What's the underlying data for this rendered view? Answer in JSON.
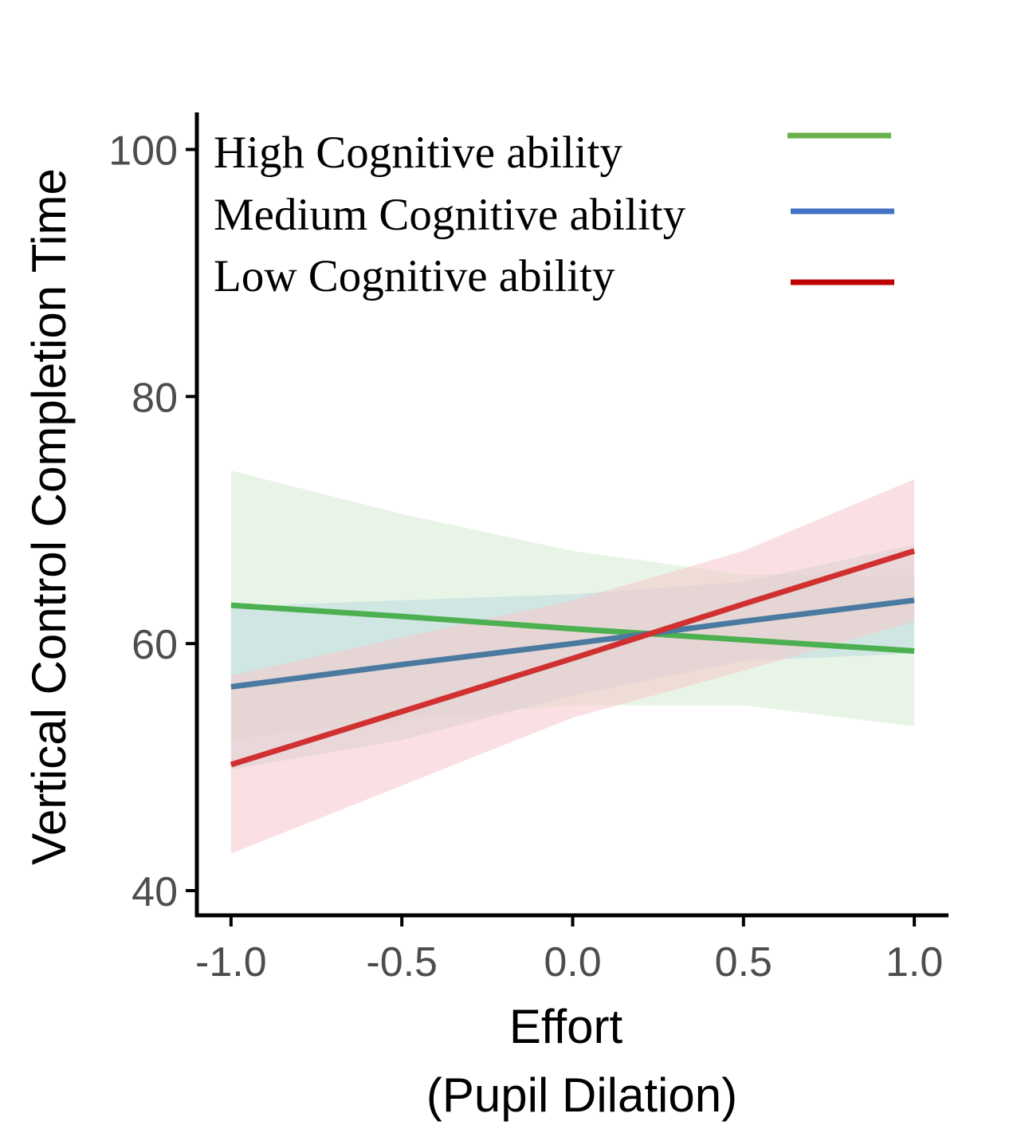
{
  "chart_data": {
    "type": "line",
    "title": "",
    "xlabel_lines": [
      "Effort",
      "(Pupil Dilation)"
    ],
    "ylabel": "Vertical Control Completion Time",
    "xlim": [
      -1.1,
      1.1
    ],
    "ylim": [
      38.0,
      103.0
    ],
    "x_ticks": [
      -1.0,
      -0.5,
      0.0,
      0.5,
      1.0
    ],
    "x_tick_labels": [
      "-1.0",
      "-0.5",
      "0.0",
      "0.5",
      "1.0"
    ],
    "y_ticks": [
      40,
      60,
      80,
      100
    ],
    "y_tick_labels": [
      "40",
      "60",
      "80",
      "100"
    ],
    "grid": false,
    "legend_position": "top",
    "series": [
      {
        "name": "High Cognitive ability",
        "color": "#6ab04c",
        "line_color": "#4caf50",
        "band_color": "#d6ecd2",
        "x": [
          -1.0,
          -0.5,
          0.0,
          0.5,
          1.0
        ],
        "y": [
          63.1,
          62.2,
          61.2,
          60.3,
          59.4
        ],
        "lower": [
          52.3,
          53.9,
          55.0,
          55.0,
          53.3
        ],
        "upper": [
          74.0,
          70.5,
          67.5,
          65.6,
          65.5
        ]
      },
      {
        "name": "Medium Cognitive ability",
        "color": "#4472c4",
        "line_color": "#4a7aa0",
        "band_color": "#bcd8e0",
        "x": [
          -1.0,
          -0.5,
          0.0,
          0.5,
          1.0
        ],
        "y": [
          56.5,
          58.3,
          60.0,
          61.8,
          63.5
        ],
        "lower": [
          49.8,
          52.2,
          55.8,
          58.6,
          59.2
        ],
        "upper": [
          63.0,
          63.5,
          64.0,
          65.0,
          68.0
        ]
      },
      {
        "name": "Low Cognitive ability",
        "color": "#c00000",
        "line_color": "#d03030",
        "band_color": "#f5c6cb",
        "x": [
          -1.0,
          -0.5,
          0.0,
          0.5,
          1.0
        ],
        "y": [
          50.2,
          54.5,
          58.8,
          63.2,
          67.5
        ],
        "lower": [
          43.0,
          48.5,
          54.0,
          57.8,
          61.8
        ],
        "upper": [
          57.4,
          60.5,
          63.5,
          67.5,
          73.3
        ]
      }
    ]
  }
}
